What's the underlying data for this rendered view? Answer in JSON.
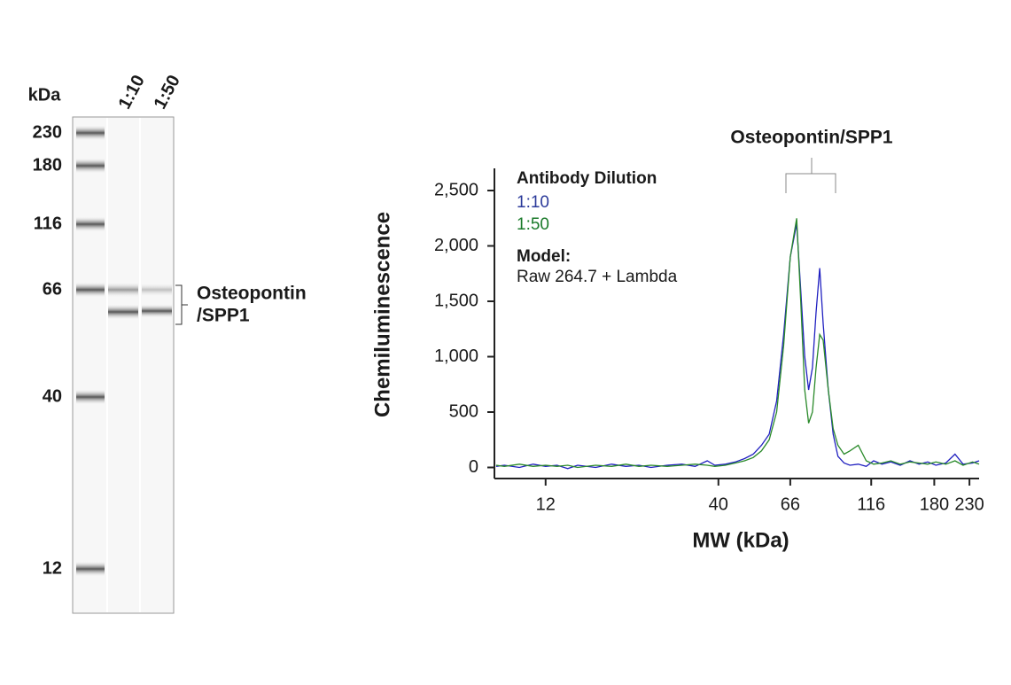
{
  "gel": {
    "unit_label": "kDa",
    "lanes": [
      "1:10",
      "1:50"
    ],
    "markers": [
      230,
      180,
      116,
      66,
      40,
      12
    ],
    "band_label": [
      "Osteopontin",
      "/SPP1"
    ]
  },
  "chart_data": {
    "type": "line",
    "title": "Osteopontin/SPP1",
    "x_label": "MW (kDa)",
    "y_label": "Chemiluminescence",
    "legend_title": "Antibody Dilution",
    "model_label": "Model:",
    "model": "Raw 264.7 + Lambda",
    "x_log": true,
    "xlim": [
      8.4,
      246
    ],
    "xticks": [
      12,
      40,
      66,
      116,
      180,
      230
    ],
    "ylim": [
      -100,
      2700
    ],
    "yticks": [
      0,
      500,
      {
        "value": 1000,
        "label": "1,000"
      },
      {
        "value": 1500,
        "label": "1,500"
      },
      {
        "value": 2000,
        "label": "2,000"
      },
      {
        "value": 2500,
        "label": "2,500"
      }
    ],
    "x": [
      8.5,
      9,
      10,
      11,
      12,
      13,
      14,
      15,
      17,
      19,
      21,
      23,
      25,
      28,
      31,
      34,
      37,
      39,
      42,
      45,
      48,
      51,
      54,
      57,
      60,
      63,
      66,
      69,
      71,
      73,
      75,
      77,
      79,
      81,
      83,
      86,
      89,
      92,
      96,
      100,
      106,
      112,
      118,
      125,
      133,
      142,
      152,
      162,
      172,
      182,
      195,
      208,
      220,
      235,
      246
    ],
    "series": [
      {
        "name": "1:10",
        "color": "#2020c0",
        "legend_color": "#2b3a9a",
        "values": [
          10,
          20,
          0,
          30,
          10,
          20,
          -10,
          20,
          0,
          30,
          10,
          20,
          0,
          20,
          30,
          10,
          60,
          20,
          30,
          50,
          80,
          120,
          200,
          300,
          600,
          1200,
          1900,
          2200,
          1600,
          1000,
          700,
          900,
          1400,
          1800,
          1300,
          700,
          300,
          100,
          40,
          20,
          30,
          10,
          60,
          30,
          50,
          20,
          60,
          30,
          50,
          20,
          40,
          120,
          30,
          40,
          60
        ]
      },
      {
        "name": "1:50",
        "color": "#2a8a2a",
        "legend_color": "#1a7a2a",
        "values": [
          20,
          10,
          30,
          10,
          20,
          10,
          20,
          0,
          20,
          10,
          30,
          10,
          20,
          10,
          20,
          30,
          20,
          10,
          20,
          40,
          60,
          90,
          150,
          250,
          500,
          1100,
          1900,
          2250,
          1500,
          700,
          400,
          500,
          900,
          1200,
          1150,
          700,
          350,
          200,
          120,
          150,
          200,
          60,
          30,
          40,
          60,
          30,
          50,
          40,
          30,
          50,
          30,
          60,
          20,
          50,
          30
        ]
      }
    ]
  }
}
